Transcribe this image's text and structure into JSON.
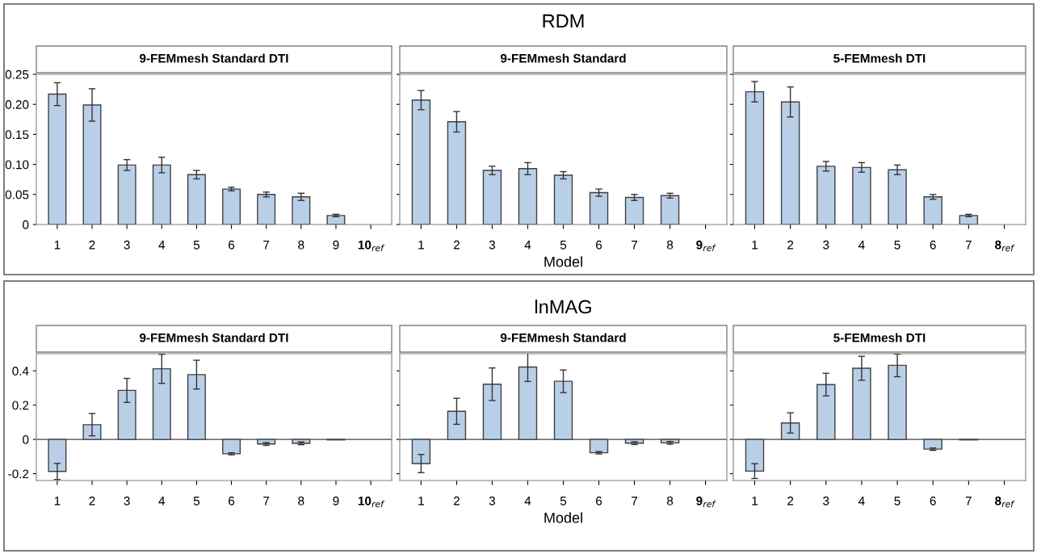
{
  "chart_data": [
    {
      "type": "bar",
      "subtitle": "9-FEMmesh Standard DTI",
      "categories": [
        "1",
        "2",
        "3",
        "4",
        "5",
        "6",
        "7",
        "8",
        "9",
        "10$_{ref}$"
      ],
      "values": [
        0.217,
        0.199,
        0.099,
        0.099,
        0.083,
        0.059,
        0.05,
        0.046,
        0.015,
        0
      ],
      "errors": [
        0.019,
        0.027,
        0.009,
        0.013,
        0.007,
        0.003,
        0.004,
        0.006,
        0.002,
        null
      ],
      "color": "#b9cfe8",
      "ylim": [
        0,
        0.25
      ],
      "yticks": [
        {
          "value": 0,
          "label": "0"
        },
        {
          "value": 0.05,
          "label": "0.05"
        },
        {
          "value": 0.1,
          "label": "0.10"
        },
        {
          "value": 0.15,
          "label": "0.15"
        },
        {
          "value": 0.2,
          "label": "0.20"
        },
        {
          "value": 0.25,
          "label": "0.25"
        }
      ],
      "grid": false
    },
    {
      "type": "bar",
      "title": "RDM",
      "subtitle": "9-FEMmesh Standard",
      "xlabel": "Model",
      "categories": [
        "1",
        "2",
        "3",
        "4",
        "5",
        "6",
        "7",
        "8",
        "9$_{ref}$"
      ],
      "values": [
        0.207,
        0.171,
        0.09,
        0.093,
        0.082,
        0.053,
        0.045,
        0.048,
        0
      ],
      "errors": [
        0.016,
        0.017,
        0.007,
        0.01,
        0.006,
        0.006,
        0.005,
        0.004,
        null
      ],
      "color": "#b9cfe8",
      "ylim": [
        0,
        0.25
      ],
      "yticks": [
        0,
        0.05,
        0.1,
        0.15,
        0.2,
        0.25
      ],
      "tick_labels": "x",
      "grid": false
    },
    {
      "type": "bar",
      "subtitle": "5-FEMmesh DTI",
      "categories": [
        "1",
        "2",
        "3",
        "4",
        "5",
        "6",
        "7",
        "8$_{ref}$"
      ],
      "values": [
        0.221,
        0.204,
        0.097,
        0.095,
        0.091,
        0.046,
        0.015,
        0
      ],
      "errors": [
        0.017,
        0.025,
        0.008,
        0.008,
        0.008,
        0.004,
        0.002,
        null
      ],
      "color": "#b9cfe8",
      "ylim": [
        0,
        0.25
      ],
      "yticks": [
        0,
        0.05,
        0.1,
        0.15,
        0.2,
        0.25
      ],
      "tick_labels": "x",
      "grid": false
    },
    {
      "type": "bar",
      "subtitle": "9-FEMmesh Standard DTI",
      "ref_lines": [
        {
          "axis": "y",
          "value": 0
        }
      ],
      "categories": [
        "1",
        "2",
        "3",
        "4",
        "5",
        "6",
        "7",
        "8",
        "9",
        "10$_{ref}$"
      ],
      "values": [
        -0.187,
        0.086,
        0.286,
        0.412,
        0.378,
        -0.084,
        -0.027,
        -0.023,
        -0.003,
        0
      ],
      "errors": [
        0.047,
        0.065,
        0.07,
        0.085,
        0.084,
        0.006,
        0.008,
        0.008,
        null,
        null
      ],
      "color": "#b9cfe8",
      "ylim": [
        -0.24,
        0.5
      ],
      "yticks": [
        {
          "value": -0.2,
          "label": "-0.2"
        },
        0,
        0.2,
        0.4
      ],
      "grid": false
    },
    {
      "type": "bar",
      "title": "lnMAG",
      "subtitle": "9-FEMmesh Standard",
      "xlabel": "Model",
      "ref_lines": [
        {
          "axis": "y",
          "value": 0
        }
      ],
      "categories": [
        "1",
        "2",
        "3",
        "4",
        "5",
        "6",
        "7",
        "8",
        "9$_{ref}$"
      ],
      "values": [
        -0.141,
        0.164,
        0.322,
        0.422,
        0.339,
        -0.078,
        -0.022,
        -0.02,
        0
      ],
      "errors": [
        0.053,
        0.076,
        0.095,
        0.084,
        0.066,
        0.007,
        0.008,
        0.008,
        null
      ],
      "color": "#b9cfe8",
      "ylim": [
        -0.24,
        0.5
      ],
      "yticks": [
        -0.2,
        0,
        0.2,
        0.4
      ],
      "tick_labels": "x",
      "grid": false
    },
    {
      "type": "bar",
      "subtitle": "5-FEMmesh DTI",
      "ref_lines": [
        {
          "axis": "y",
          "value": 0
        }
      ],
      "categories": [
        "1",
        "2",
        "3",
        "4",
        "5",
        "6",
        "7",
        "8$_{ref}$"
      ],
      "values": [
        -0.185,
        0.096,
        0.32,
        0.415,
        0.432,
        -0.057,
        -0.003,
        0
      ],
      "errors": [
        0.043,
        0.059,
        0.066,
        0.07,
        0.066,
        0.007,
        null,
        null
      ],
      "color": "#b9cfe8",
      "ylim": [
        -0.24,
        0.5
      ],
      "yticks": [
        -0.2,
        0,
        0.2,
        0.4
      ],
      "tick_labels": "x",
      "grid": false
    }
  ]
}
